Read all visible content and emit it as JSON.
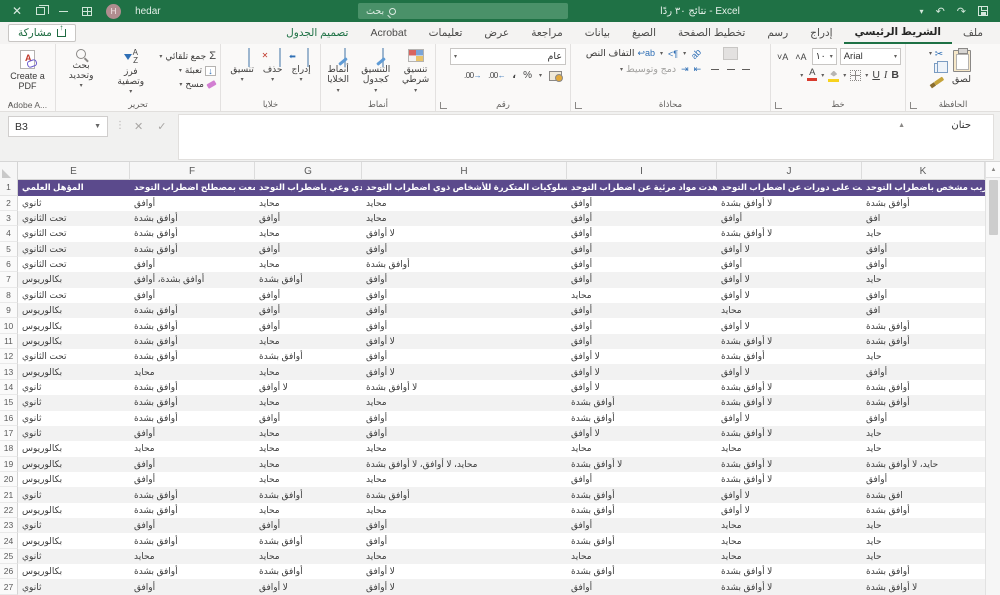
{
  "titlebar": {
    "user_initial": "H",
    "user_name": "hedar",
    "search_placeholder": "بحث",
    "title": "نتائج ٣٠ ردًا - Excel"
  },
  "share_label": "مشاركة",
  "tabs": [
    {
      "label": "ملف"
    },
    {
      "label": "الشريط الرئيسي",
      "active": true
    },
    {
      "label": "إدراج"
    },
    {
      "label": "رسم"
    },
    {
      "label": "تخطيط الصفحة"
    },
    {
      "label": "الصيغ"
    },
    {
      "label": "بيانات"
    },
    {
      "label": "مراجعة"
    },
    {
      "label": "عرض"
    },
    {
      "label": "تعليمات"
    },
    {
      "label": "Acrobat"
    },
    {
      "label": "تصميم الجدول",
      "contextual": true
    }
  ],
  "ribbon": {
    "clipboard": {
      "group_label": "الحافظة",
      "paste": "لصق"
    },
    "font": {
      "group_label": "خط",
      "font_name": "Arial",
      "font_size": "١٠",
      "bold": "B",
      "italic": "I",
      "underline": "U",
      "font_color_glyph": "A"
    },
    "alignment": {
      "group_label": "محاذاة",
      "wrap_text": "التفاف النص",
      "merge_center": "دمج وتوسيط"
    },
    "number": {
      "group_label": "رقم",
      "format": "عام",
      "percent": "%",
      "comma": "،",
      "inc_dec": "00.",
      "dec_dec": ".00"
    },
    "styles": {
      "group_label": "أنماط",
      "conditional": "تنسيق شرطي",
      "format_table": "التنسيق كجدول",
      "cell_styles": "أنماط الخلايا"
    },
    "cells": {
      "group_label": "خلايا",
      "insert": "إدراج",
      "delete": "حذف",
      "format": "تنسيق"
    },
    "editing": {
      "group_label": "تحرير",
      "autosum": "جمع تلقائي",
      "fill": "تعبئة",
      "clear": "مسح",
      "sort": "فرز وتصفية",
      "find": "بحث وتحديد"
    },
    "adobe": {
      "group_label": "Adobe A...",
      "create_pdf": "Create a PDF"
    }
  },
  "formula": {
    "name_box": "B3",
    "cancel_glyph": "✕",
    "enter_glyph": "✓",
    "fx_glyph": "fx",
    "value": "حنان"
  },
  "grid": {
    "columns": [
      "E",
      "F",
      "G",
      "H",
      "I",
      "J",
      "K"
    ],
    "header_row": [
      "المؤهل العلمي",
      "سمعت بمصطلح اضطراب التوحد",
      "لدي وعي باضطراب التوحد",
      "لدي معرفة بالسلوكيات المتكررة للأشخاص ذوي اضطراب التوحد",
      "شاهدت مواد مرئية عن اضطراب التوحد",
      "حصلت على دورات عن اضطراب التوحد",
      "لدي قريب مشخص باضطراب التوحد"
    ],
    "first_row_number": 2,
    "rows": [
      [
        "ثانوي",
        "أوافق",
        "محايد",
        "محايد",
        "أوافق",
        "لا أوافق بشدة",
        "أوافق بشدة"
      ],
      [
        "تحت الثانوي",
        "أوافق بشدة",
        "أوافق",
        "محايد",
        "أوافق",
        "أوافق",
        "افق"
      ],
      [
        "تحت الثانوي",
        "أوافق بشدة",
        "محايد",
        "لا أوافق",
        "أوافق",
        "لا أوافق بشدة",
        "حايد"
      ],
      [
        "تحت الثانوي",
        "أوافق بشدة",
        "أوافق",
        "أوافق",
        "أوافق",
        "لا أوافق",
        "أوافق"
      ],
      [
        "تحت الثانوي",
        "أوافق",
        "محايد",
        "أوافق بشدة",
        "أوافق",
        "أوافق",
        "أوافق"
      ],
      [
        "بكالوريوس",
        "أوافق بشدة، أوافق",
        "أوافق بشدة",
        "أوافق",
        "أوافق",
        "لا أوافق",
        "حايد"
      ],
      [
        "تحت الثانوي",
        "أوافق",
        "أوافق",
        "أوافق",
        "محايد",
        "لا أوافق",
        "أوافق"
      ],
      [
        "بكالوريوس",
        "أوافق بشدة",
        "أوافق",
        "أوافق",
        "أوافق",
        "محايد",
        "افق"
      ],
      [
        "بكالوريوس",
        "أوافق بشدة",
        "أوافق",
        "أوافق",
        "أوافق",
        "لا أوافق",
        "أوافق بشدة"
      ],
      [
        "بكالوريوس",
        "أوافق بشدة",
        "محايد",
        "لا أوافق",
        "أوافق",
        "لا أوافق بشدة",
        "أوافق بشدة"
      ],
      [
        "تحت الثانوي",
        "أوافق بشدة",
        "أوافق بشدة",
        "أوافق",
        "لا أوافق",
        "أوافق بشدة",
        "حايد"
      ],
      [
        "بكالوريوس",
        "محايد",
        "محايد",
        "لا أوافق",
        "لا أوافق",
        "لا أوافق",
        "أوافق"
      ],
      [
        "ثانوي",
        "أوافق بشدة",
        "لا أوافق",
        "لا أوافق بشدة",
        "لا أوافق",
        "لا أوافق بشدة",
        "أوافق بشدة"
      ],
      [
        "ثانوي",
        "أوافق بشدة",
        "محايد",
        "محايد",
        "أوافق بشدة",
        "لا أوافق بشدة",
        "أوافق بشدة"
      ],
      [
        "ثانوي",
        "أوافق بشدة",
        "أوافق",
        "أوافق",
        "أوافق بشدة",
        "لا أوافق",
        "أوافق"
      ],
      [
        "ثانوي",
        "أوافق",
        "محايد",
        "أوافق",
        "لا أوافق",
        "لا أوافق بشدة",
        "حايد"
      ],
      [
        "بكالوريوس",
        "محايد",
        "محايد",
        "محايد",
        "محايد",
        "محايد",
        "حايد"
      ],
      [
        "بكالوريوس",
        "أوافق",
        "محايد",
        "محايد، لا أوافق، لا أوافق بشدة",
        "لا أوافق بشدة",
        "لا أوافق بشدة",
        "حايد، لا أوافق بشدة"
      ],
      [
        "بكالوريوس",
        "أوافق",
        "محايد",
        "محايد",
        "أوافق",
        "لا أوافق بشدة",
        "أوافق"
      ],
      [
        "ثانوي",
        "أوافق بشدة",
        "أوافق بشدة",
        "أوافق بشدة",
        "أوافق بشدة",
        "لا أوافق",
        "افق بشدة"
      ],
      [
        "بكالوريوس",
        "أوافق بشدة",
        "محايد",
        "محايد",
        "أوافق بشدة",
        "لا أوافق",
        "أوافق بشدة"
      ],
      [
        "ثانوي",
        "أوافق",
        "أوافق",
        "أوافق",
        "أوافق",
        "محايد",
        "حايد"
      ],
      [
        "بكالوريوس",
        "أوافق بشدة",
        "أوافق بشدة",
        "أوافق",
        "أوافق بشدة",
        "محايد",
        "حايد"
      ],
      [
        "ثانوي",
        "محايد",
        "محايد",
        "محايد",
        "محايد",
        "محايد",
        "حايد"
      ],
      [
        "بكالوريوس",
        "أوافق بشدة",
        "أوافق بشدة",
        "لا أوافق",
        "أوافق بشدة",
        "لا أوافق بشدة",
        "أوافق بشدة"
      ],
      [
        "ثانوي",
        "أوافق",
        "لا أوافق",
        "لا أوافق",
        "أوافق",
        "لا أوافق بشدة",
        "لا أوافق بشدة"
      ]
    ]
  },
  "colors": {
    "accent_green": "#217346",
    "header_purple": "#5b4a8c",
    "band_gray": "#f2f2f2"
  }
}
